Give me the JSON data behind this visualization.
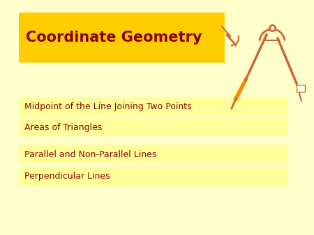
{
  "bg_color": "#FFFFCC",
  "title": "Coordinate Geometry",
  "title_bg": "#FFCC00",
  "title_text_color": "#8B0000",
  "title_fontsize": 15,
  "menu_items": [
    "Midpoint of the Line Joining Two Points",
    "Areas of Triangles",
    "Parallel and Non-Parallel Lines",
    "Perpendicular Lines"
  ],
  "menu_bg": "#FFFF99",
  "menu_text_color": "#8B0000",
  "menu_fontsize": 9,
  "compass_color": "#CC6633",
  "compass_color2": "#FF8800"
}
